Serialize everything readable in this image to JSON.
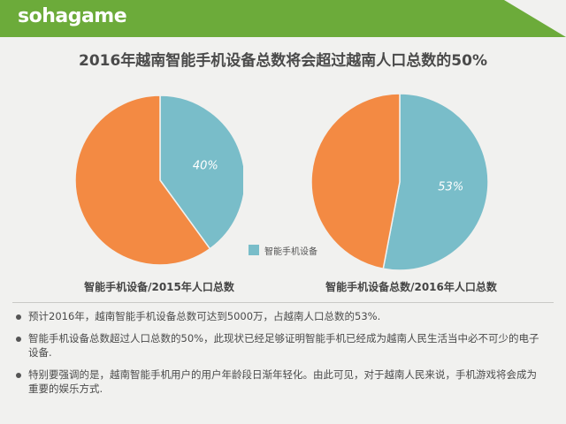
{
  "brand": {
    "logo": "sohagame"
  },
  "page": {
    "title": "2016年越南智能手机设备总数将会超过越南人口总数的50%"
  },
  "colors": {
    "smartphone": "#79bdc9",
    "population": "#f38a43",
    "header": "#6cab3a"
  },
  "chart_data": [
    {
      "type": "pie",
      "title": "智能手机设备/2015年人口总数",
      "slices": [
        {
          "label": "智能手机设备",
          "value": 40,
          "display": "40%"
        },
        {
          "label": "",
          "value": 60,
          "display": ""
        }
      ]
    },
    {
      "type": "pie",
      "title": "智能手机设备总数/2016年人口总数",
      "slices": [
        {
          "label": "智能手机设备",
          "value": 53,
          "display": "53%"
        },
        {
          "label": "",
          "value": 47,
          "display": ""
        }
      ]
    }
  ],
  "legend": {
    "label": "智能手机设备"
  },
  "bullets": [
    "预计2016年，越南智能手机设备总数可达到5000万，占越南人口总数的53%.",
    "智能手机设备总数超过人口总数的50%，此现状已经足够证明智能手机已经成为越南人民生活当中必不可少的电子设备.",
    "特别要强调的是，越南智能手机用户的用户年龄段日渐年轻化。由此可见，对于越南人民来说，手机游戏将会成为重要的娱乐方式."
  ]
}
